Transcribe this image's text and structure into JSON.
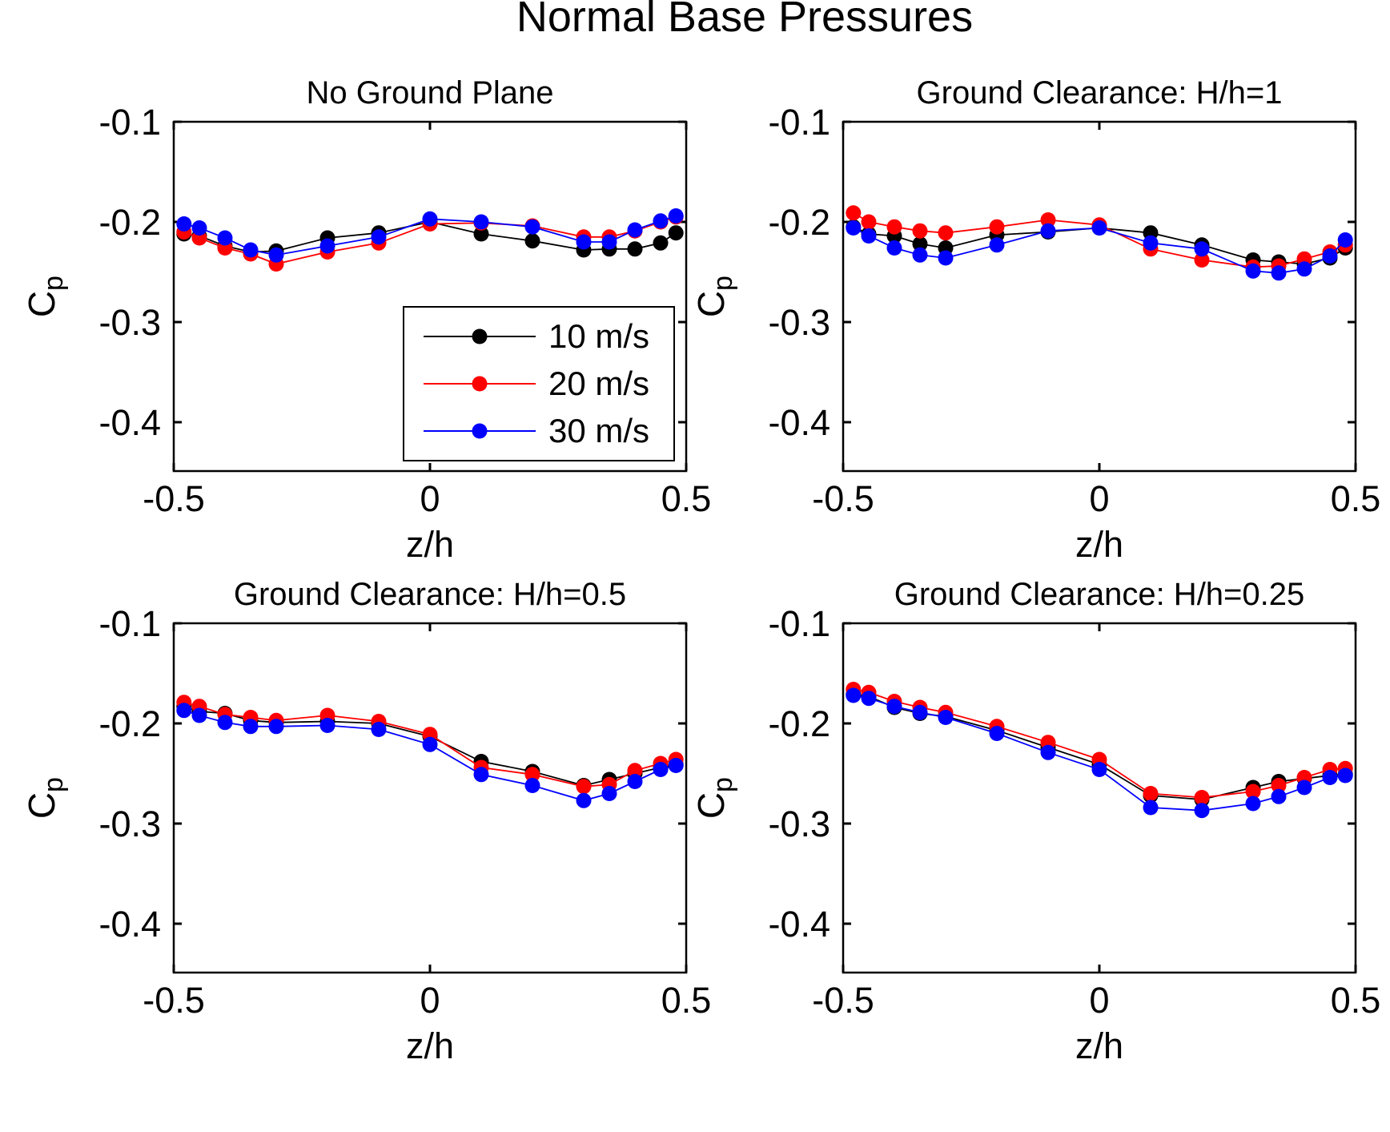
{
  "figure": {
    "title": "Normal Base Pressures"
  },
  "axes": {
    "xlabel": "z/h",
    "ylabel_main": "C",
    "ylabel_sub": "p"
  },
  "chart_data": {
    "type": "line",
    "figure_title": "Normal Base Pressures",
    "xlabel": "z/h",
    "ylabel": "Cp",
    "xlim": [
      -0.5,
      0.5
    ],
    "ylim": [
      -0.4488,
      -0.1
    ],
    "x_tick_values": [
      -0.5,
      0,
      0.5
    ],
    "x_tick_labels": [
      "-0.5",
      "0",
      "0.5"
    ],
    "y_tick_values": [
      -0.1,
      -0.2,
      -0.3,
      -0.4
    ],
    "y_tick_labels": [
      "-0.1",
      "-0.2",
      "-0.3",
      "-0.4"
    ],
    "grid": false,
    "legend": {
      "position": "lower right of first subplot",
      "entries": [
        {
          "label": "10 m/s",
          "color": "#000000"
        },
        {
          "label": "20 m/s",
          "color": "#ff0000"
        },
        {
          "label": "30 m/s",
          "color": "#0000ff"
        }
      ]
    },
    "subplots": [
      {
        "title": "No Ground Plane",
        "x": [
          -0.48,
          -0.45,
          -0.4,
          -0.35,
          -0.3,
          -0.2,
          -0.1,
          0.0,
          0.1,
          0.2,
          0.3,
          0.35,
          0.4,
          0.45,
          0.48
        ],
        "series": [
          {
            "name": "10 m/s",
            "color": "#000000",
            "values": [
              -0.212,
              -0.214,
              -0.224,
              -0.23,
              -0.229,
              -0.216,
              -0.211,
              -0.2,
              -0.212,
              -0.219,
              -0.228,
              -0.227,
              -0.227,
              -0.221,
              -0.211
            ]
          },
          {
            "name": "20 m/s",
            "color": "#ff0000",
            "values": [
              -0.21,
              -0.216,
              -0.226,
              -0.232,
              -0.242,
              -0.23,
              -0.221,
              -0.202,
              -0.201,
              -0.204,
              -0.215,
              -0.215,
              -0.209,
              -0.2,
              -0.195
            ]
          },
          {
            "name": "30 m/s",
            "color": "#0000ff",
            "values": [
              -0.202,
              -0.206,
              -0.216,
              -0.228,
              -0.233,
              -0.224,
              -0.215,
              -0.197,
              -0.2,
              -0.205,
              -0.22,
              -0.22,
              -0.208,
              -0.199,
              -0.194
            ]
          }
        ]
      },
      {
        "title": "Ground Clearance: H/h=1",
        "x": [
          -0.48,
          -0.45,
          -0.4,
          -0.35,
          -0.3,
          -0.2,
          -0.1,
          0.0,
          0.1,
          0.2,
          0.3,
          0.35,
          0.4,
          0.45,
          0.48
        ],
        "series": [
          {
            "name": "10 m/s",
            "color": "#000000",
            "values": [
              -0.205,
              -0.212,
              -0.214,
              -0.222,
              -0.226,
              -0.213,
              -0.21,
              -0.206,
              -0.211,
              -0.223,
              -0.238,
              -0.24,
              -0.242,
              -0.236,
              -0.226
            ]
          },
          {
            "name": "20 m/s",
            "color": "#ff0000",
            "values": [
              -0.191,
              -0.2,
              -0.205,
              -0.209,
              -0.211,
              -0.205,
              -0.198,
              -0.203,
              -0.227,
              -0.238,
              -0.245,
              -0.244,
              -0.237,
              -0.23,
              -0.223
            ]
          },
          {
            "name": "30 m/s",
            "color": "#0000ff",
            "values": [
              -0.206,
              -0.214,
              -0.226,
              -0.233,
              -0.236,
              -0.223,
              -0.209,
              -0.206,
              -0.221,
              -0.227,
              -0.249,
              -0.251,
              -0.247,
              -0.234,
              -0.218
            ]
          }
        ]
      },
      {
        "title": "Ground Clearance: H/h=0.5",
        "x": [
          -0.48,
          -0.45,
          -0.4,
          -0.35,
          -0.3,
          -0.2,
          -0.1,
          0.0,
          0.1,
          0.2,
          0.3,
          0.35,
          0.4,
          0.45,
          0.48
        ],
        "series": [
          {
            "name": "10 m/s",
            "color": "#000000",
            "values": [
              -0.183,
              -0.188,
              -0.19,
              -0.197,
              -0.199,
              -0.198,
              -0.2,
              -0.213,
              -0.238,
              -0.248,
              -0.262,
              -0.256,
              -0.25,
              -0.244,
              -0.241
            ]
          },
          {
            "name": "20 m/s",
            "color": "#ff0000",
            "values": [
              -0.179,
              -0.183,
              -0.191,
              -0.194,
              -0.197,
              -0.192,
              -0.198,
              -0.211,
              -0.244,
              -0.251,
              -0.263,
              -0.261,
              -0.247,
              -0.24,
              -0.236
            ]
          },
          {
            "name": "30 m/s",
            "color": "#0000ff",
            "values": [
              -0.187,
              -0.192,
              -0.199,
              -0.203,
              -0.203,
              -0.202,
              -0.206,
              -0.221,
              -0.251,
              -0.262,
              -0.277,
              -0.27,
              -0.258,
              -0.246,
              -0.242
            ]
          }
        ]
      },
      {
        "title": "Ground Clearance: H/h=0.25",
        "x": [
          -0.48,
          -0.45,
          -0.4,
          -0.35,
          -0.3,
          -0.2,
          -0.1,
          0.0,
          0.1,
          0.2,
          0.3,
          0.35,
          0.4,
          0.45,
          0.48
        ],
        "series": [
          {
            "name": "10 m/s",
            "color": "#000000",
            "values": [
              -0.171,
              -0.173,
              -0.184,
              -0.19,
              -0.193,
              -0.207,
              -0.224,
              -0.241,
              -0.272,
              -0.276,
              -0.264,
              -0.258,
              -0.255,
              -0.252,
              -0.251
            ]
          },
          {
            "name": "20 m/s",
            "color": "#ff0000",
            "values": [
              -0.166,
              -0.169,
              -0.178,
              -0.184,
              -0.189,
              -0.203,
              -0.219,
              -0.236,
              -0.27,
              -0.274,
              -0.268,
              -0.262,
              -0.254,
              -0.246,
              -0.245
            ]
          },
          {
            "name": "30 m/s",
            "color": "#0000ff",
            "values": [
              -0.172,
              -0.175,
              -0.183,
              -0.189,
              -0.194,
              -0.21,
              -0.229,
              -0.246,
              -0.284,
              -0.287,
              -0.28,
              -0.273,
              -0.264,
              -0.254,
              -0.252
            ]
          }
        ]
      }
    ]
  }
}
